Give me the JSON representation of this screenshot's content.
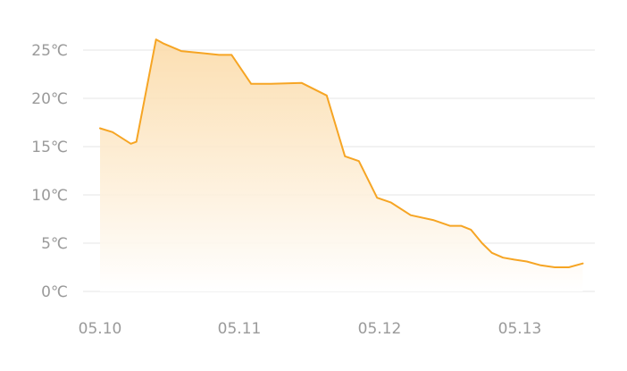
{
  "chart_data": {
    "type": "area",
    "title": "",
    "xlabel": "",
    "ylabel": "",
    "x_ticks": [
      "05.10",
      "05.11",
      "05.12",
      "05.13"
    ],
    "y_ticks": [
      "0℃",
      "5℃",
      "10℃",
      "15℃",
      "20℃",
      "25℃"
    ],
    "ylim": [
      0,
      25
    ],
    "xlim": [
      0,
      3.5
    ],
    "grid": true,
    "legend": "none",
    "colors": {
      "line": "#f6a524",
      "fill_top": "#fbd9a4",
      "fill_bottom": "#ffffff",
      "grid": "#e6e6e6",
      "tick": "#9a9a9a"
    },
    "series": [
      {
        "x": [
          0.0,
          0.09,
          0.22,
          0.26,
          0.4,
          0.45,
          0.58,
          0.72,
          0.85,
          0.94,
          1.08,
          1.22,
          1.44,
          1.62,
          1.75,
          1.85,
          1.98,
          2.08,
          2.22,
          2.38,
          2.5,
          2.58,
          2.65,
          2.73,
          2.8,
          2.88,
          2.96,
          3.05,
          3.15,
          3.25,
          3.35,
          3.45
        ],
        "y": [
          16.9,
          16.5,
          15.3,
          15.5,
          26.1,
          25.7,
          24.9,
          24.7,
          24.5,
          24.5,
          21.5,
          21.5,
          21.6,
          20.3,
          14.0,
          13.5,
          9.7,
          9.2,
          7.9,
          7.4,
          6.8,
          6.8,
          6.4,
          5.0,
          4.0,
          3.5,
          3.3,
          3.1,
          2.7,
          2.5,
          2.5,
          2.9
        ]
      }
    ]
  }
}
